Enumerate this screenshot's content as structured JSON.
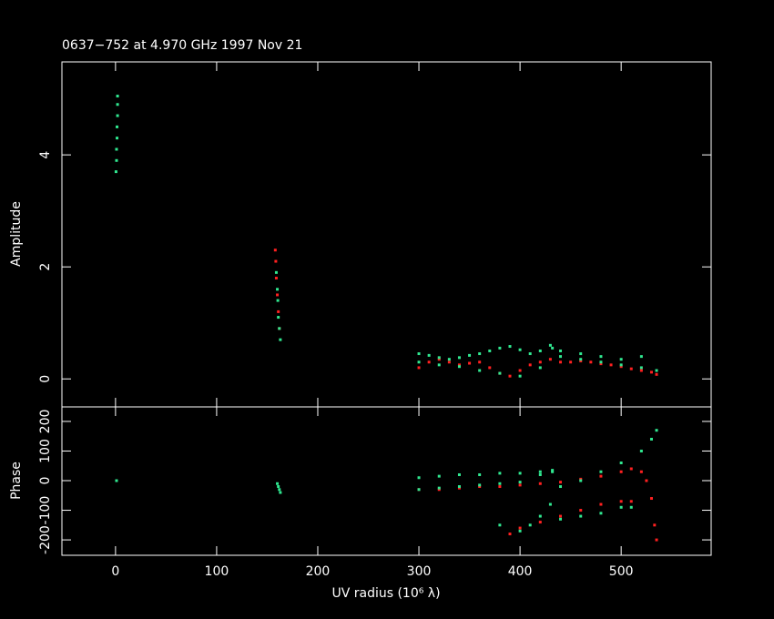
{
  "chart_data": [
    {
      "type": "scatter",
      "title": "0637−752 at 4.970 GHz 1997 Nov 21",
      "y_label": "Amplitude",
      "xlim": [
        -53,
        589
      ],
      "ylim": [
        -0.5,
        5.66
      ],
      "yticks": [
        0,
        2,
        4
      ],
      "series": [
        {
          "color": "#ff2020",
          "x": [
            158,
            158.5,
            159,
            160,
            161,
            162,
            300,
            310,
            320,
            330,
            340,
            350,
            360,
            370,
            380,
            390,
            400,
            410,
            420,
            430,
            440,
            450,
            460,
            470,
            480,
            490,
            500,
            510,
            520,
            530,
            535
          ],
          "values": [
            2.3,
            2.1,
            1.8,
            1.5,
            1.2,
            0.9,
            0.2,
            0.3,
            0.35,
            0.3,
            0.25,
            0.28,
            0.3,
            0.2,
            0.1,
            0.05,
            0.15,
            0.25,
            0.3,
            0.35,
            0.3,
            0.3,
            0.32,
            0.3,
            0.27,
            0.25,
            0.22,
            0.18,
            0.15,
            0.12,
            0.08
          ]
        },
        {
          "color": "#30e890",
          "x": [
            0.5,
            1,
            1,
            1.5,
            1.5,
            2,
            2,
            2,
            159,
            160,
            160.5,
            161,
            162,
            163,
            300,
            310,
            320,
            330,
            340,
            350,
            360,
            370,
            380,
            390,
            400,
            410,
            420,
            430,
            432,
            300,
            320,
            340,
            360,
            380,
            400,
            420,
            440,
            460,
            480,
            500,
            520,
            535,
            440,
            460,
            480,
            500,
            520
          ],
          "values": [
            3.7,
            3.9,
            4.1,
            4.3,
            4.5,
            4.7,
            4.9,
            5.05,
            1.9,
            1.6,
            1.4,
            1.1,
            0.9,
            0.7,
            0.45,
            0.42,
            0.38,
            0.35,
            0.38,
            0.42,
            0.45,
            0.5,
            0.55,
            0.58,
            0.52,
            0.45,
            0.5,
            0.6,
            0.55,
            0.3,
            0.25,
            0.22,
            0.15,
            0.1,
            0.05,
            0.2,
            0.4,
            0.35,
            0.3,
            0.25,
            0.2,
            0.15,
            0.5,
            0.45,
            0.4,
            0.35,
            0.4
          ]
        }
      ]
    },
    {
      "type": "scatter",
      "y_label": "Phase",
      "x_label": "UV radius  (10⁶ λ)",
      "xlim": [
        -53,
        589
      ],
      "xticks": [
        0,
        100,
        200,
        300,
        400,
        500
      ],
      "ylim": [
        -252,
        249
      ],
      "yticks": [
        -200,
        -100,
        0,
        100,
        200
      ],
      "series": [
        {
          "color": "#ff2020",
          "x": [
            300,
            320,
            340,
            360,
            380,
            400,
            420,
            440,
            460,
            480,
            500,
            510,
            520,
            525,
            530,
            533,
            535,
            390,
            400,
            420,
            440,
            460,
            480,
            500,
            510
          ],
          "values": [
            -30,
            -30,
            -25,
            -20,
            -20,
            -15,
            -10,
            -5,
            5,
            15,
            30,
            40,
            30,
            0,
            -60,
            -150,
            -200,
            -180,
            -160,
            -140,
            -120,
            -100,
            -80,
            -70,
            -70
          ]
        },
        {
          "color": "#30e890",
          "x": [
            1,
            160,
            161,
            162,
            163,
            300,
            320,
            340,
            360,
            380,
            400,
            420,
            432,
            300,
            320,
            340,
            360,
            380,
            400,
            420,
            432,
            380,
            400,
            410,
            420,
            430,
            440,
            460,
            480,
            500,
            520,
            530,
            535,
            440,
            460,
            480,
            500,
            510
          ],
          "values": [
            0,
            -10,
            -20,
            -30,
            -40,
            10,
            15,
            20,
            20,
            25,
            25,
            30,
            35,
            -30,
            -25,
            -20,
            -15,
            -10,
            -5,
            20,
            30,
            -150,
            -170,
            -150,
            -120,
            -80,
            -20,
            0,
            30,
            60,
            100,
            140,
            170,
            -130,
            -120,
            -110,
            -90,
            -90
          ]
        }
      ]
    }
  ]
}
